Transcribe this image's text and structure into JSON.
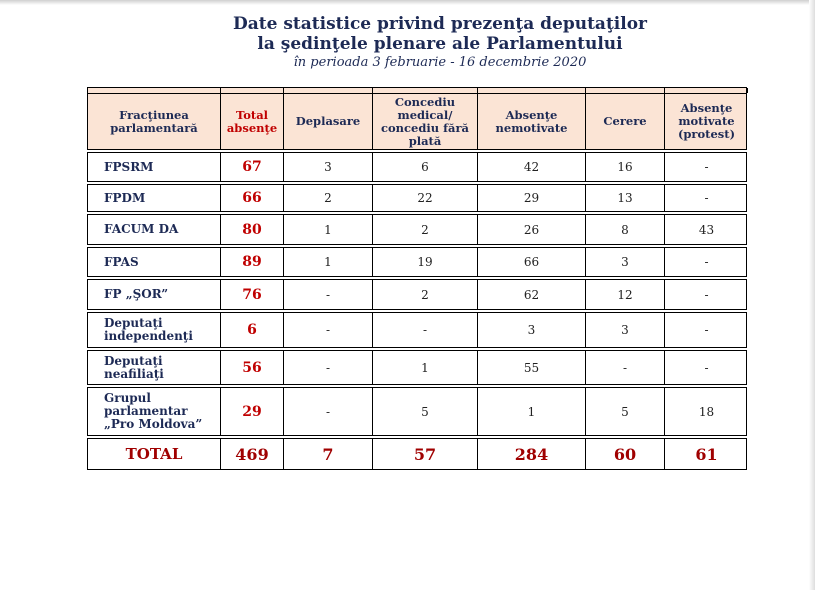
{
  "title_line1": "Date statistice privind prezenţa deputaţilor",
  "title_line2": "la şedinţele plenare ale Parlamentului",
  "subtitle": "în perioada 3 februarie - 16 decembrie 2020",
  "headers": [
    "Fracţiunea parlamentară",
    "Total absenţe",
    "Deplasare",
    "Concediu medical/ concediu fără plată",
    "Absenţe nemotivate",
    "Cerere",
    "Absenţe motivate (protest)"
  ],
  "rows": [
    [
      "FPSRM",
      "67",
      "3",
      "6",
      "42",
      "16",
      "-"
    ],
    [
      "FPDM",
      "66",
      "2",
      "22",
      "29",
      "13",
      "-"
    ],
    [
      "FACUM DA",
      "80",
      "1",
      "2",
      "26",
      "8",
      "43"
    ],
    [
      "FPAS",
      "89",
      "1",
      "19",
      "66",
      "3",
      "-"
    ],
    [
      "FP „ŞOR”",
      "76",
      "-",
      "2",
      "62",
      "12",
      "-"
    ],
    [
      "Deputaţi independenţi",
      "6",
      "-",
      "-",
      "3",
      "3",
      "-"
    ],
    [
      "Deputaţi neafiliaţi",
      "56",
      "-",
      "1",
      "55",
      "-",
      "-"
    ],
    [
      "Grupul parlamentar „Pro Moldova”",
      "29",
      "-",
      "5",
      "1",
      "5",
      "18"
    ]
  ],
  "total": [
    "TOTAL",
    "469",
    "7",
    "57",
    "284",
    "60",
    "61"
  ]
}
